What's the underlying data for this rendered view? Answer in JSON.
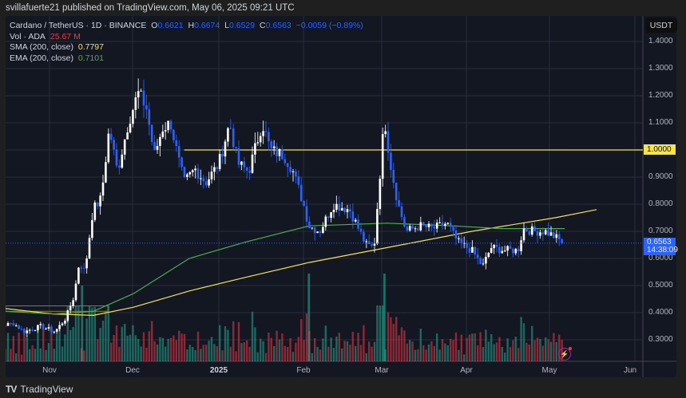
{
  "header": {
    "published": "svillafuerte21 published on TradingView.com, May 06, 2025 09:21 UTC"
  },
  "legend": {
    "symbol": "Cardano / TetherUS · 1D · BINANCE",
    "o_label": "O",
    "o": "0.6621",
    "h_label": "H",
    "h": "0.6674",
    "l_label": "L",
    "l": "0.6529",
    "c_label": "C",
    "c": "0.6563",
    "change": "−0.0059 (−0.89%)",
    "vol_label": "Vol · ADA",
    "vol": "25.67 M",
    "sma_label": "SMA (200, close)",
    "sma": "0.7797",
    "ema_label": "EMA (200, close)",
    "ema": "0.7101"
  },
  "axis": {
    "currency": "USDT",
    "price_ticks": [
      "1.4000",
      "1.3000",
      "1.2000",
      "1.1000",
      "0.9000",
      "0.8000",
      "0.7000",
      "0.6000",
      "0.5000",
      "0.4000",
      "0.3000"
    ],
    "level_tag": "1.0000",
    "last_price": "0.6563",
    "countdown": "14:38:09",
    "x_ticks": [
      "Nov",
      "Dec",
      "2025",
      "Feb",
      "Mar",
      "Apr",
      "May",
      "Jun"
    ]
  },
  "footer": {
    "brand": "TradingView",
    "logo": "TV"
  },
  "colors": {
    "up": "#ffffff",
    "down": "#2962ff",
    "vol_up": "#22ab94",
    "vol_down": "#f23645",
    "sma": "#f7e34a",
    "ema": "#4caf50",
    "level": "#f7e34a"
  },
  "chart_data": {
    "type": "candlestick",
    "title": "Cardano / TetherUS · 1D · BINANCE",
    "ylabel": "USDT",
    "ylim": [
      0.22,
      1.45
    ],
    "x_ticks": [
      "Nov",
      "Dec",
      "2025",
      "Feb",
      "Mar",
      "Apr",
      "May",
      "Jun"
    ],
    "horizontal_level": 1.0,
    "anchors_close": [
      [
        "Oct 05",
        0.36
      ],
      [
        "Oct 12",
        0.35
      ],
      [
        "Oct 18",
        0.36
      ],
      [
        "Oct 22",
        0.33
      ],
      [
        "Oct 28",
        0.35
      ],
      [
        "Nov 03",
        0.33
      ],
      [
        "Nov 07",
        0.38
      ],
      [
        "Nov 10",
        0.46
      ],
      [
        "Nov 12",
        0.59
      ],
      [
        "Nov 14",
        0.55
      ],
      [
        "Nov 17",
        0.78
      ],
      [
        "Nov 20",
        0.82
      ],
      [
        "Nov 23",
        1.08
      ],
      [
        "Nov 26",
        0.92
      ],
      [
        "Nov 30",
        1.1
      ],
      [
        "Dec 03",
        1.21
      ],
      [
        "Dec 06",
        1.16
      ],
      [
        "Dec 09",
        0.98
      ],
      [
        "Dec 12",
        1.08
      ],
      [
        "Dec 15",
        1.1
      ],
      [
        "Dec 18",
        0.96
      ],
      [
        "Dec 20",
        0.88
      ],
      [
        "Dec 24",
        0.93
      ],
      [
        "Dec 28",
        0.88
      ],
      [
        "Jan 01",
        0.95
      ],
      [
        "Jan 05",
        1.1
      ],
      [
        "Jan 08",
        0.95
      ],
      [
        "Jan 12",
        0.92
      ],
      [
        "Jan 17",
        1.1
      ],
      [
        "Jan 20",
        1.0
      ],
      [
        "Jan 25",
        0.98
      ],
      [
        "Jan 28",
        0.93
      ],
      [
        "Feb 01",
        0.8
      ],
      [
        "Feb 03",
        0.72
      ],
      [
        "Feb 07",
        0.7
      ],
      [
        "Feb 12",
        0.8
      ],
      [
        "Feb 18",
        0.78
      ],
      [
        "Feb 24",
        0.65
      ],
      [
        "Feb 27",
        0.64
      ],
      [
        "Mar 02",
        1.12
      ],
      [
        "Mar 04",
        0.96
      ],
      [
        "Mar 07",
        0.8
      ],
      [
        "Mar 10",
        0.7
      ],
      [
        "Mar 15",
        0.72
      ],
      [
        "Mar 20",
        0.71
      ],
      [
        "Mar 25",
        0.73
      ],
      [
        "Mar 29",
        0.66
      ],
      [
        "Apr 03",
        0.63
      ],
      [
        "Apr 07",
        0.57
      ],
      [
        "Apr 10",
        0.64
      ],
      [
        "Apr 15",
        0.63
      ],
      [
        "Apr 20",
        0.63
      ],
      [
        "Apr 22",
        0.71
      ],
      [
        "Apr 26",
        0.7
      ],
      [
        "Apr 30",
        0.7
      ],
      [
        "May 03",
        0.68
      ],
      [
        "May 06",
        0.6563
      ]
    ],
    "sma200": {
      "start": 0.41,
      "end": 0.7797
    },
    "ema200": {
      "start": 0.39,
      "end": 0.7101
    },
    "volume_spikes": [
      [
        "Feb 03",
        "very high"
      ],
      [
        "Mar 02",
        "very high"
      ],
      [
        "Nov 13",
        "high"
      ]
    ]
  }
}
